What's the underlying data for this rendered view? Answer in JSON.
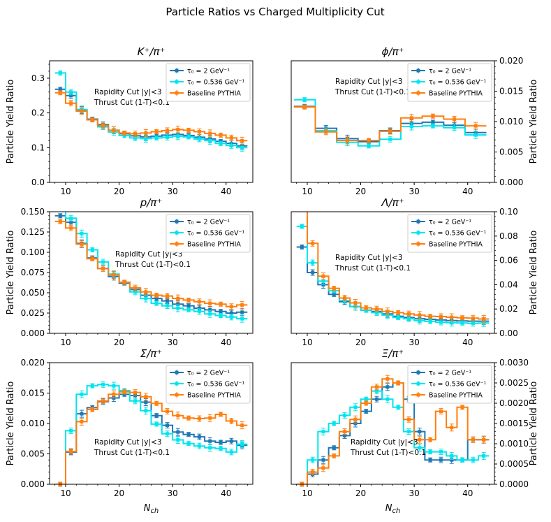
{
  "figure": {
    "title": "Particle Ratios vs Charged Multiplicity Cut",
    "xlabel": "N_ch",
    "ylabel": "Particle Yield Ratio"
  },
  "colors": {
    "tau2": "#1f77b4",
    "tau0536": "#00e5ee",
    "pythia": "#ff7f0e"
  },
  "chart_data": [
    {
      "type": "line",
      "title": "K⁺/π⁺",
      "ylabel": "Particle Yield Ratio",
      "ylim": [
        0,
        0.35
      ],
      "yticks": [
        0.0,
        0.1,
        0.2,
        0.3
      ],
      "ytick_labels": [
        "0.0",
        "0.1",
        "0.2",
        "0.3"
      ],
      "xlim": [
        7,
        45
      ],
      "xticks": [
        10,
        20,
        30,
        40
      ],
      "axis_side": "left",
      "annotation": [
        "Rapidity Cut |y|<3",
        "Thrust Cut (1-T)<0.1"
      ],
      "legend": [
        "τ₀ = 2 GeV⁻¹",
        "τ₀ = 0.536 GeV⁻¹",
        "Baseline PYTHIA"
      ],
      "x": [
        9,
        11,
        13,
        15,
        17,
        19,
        21,
        23,
        25,
        27,
        29,
        31,
        33,
        35,
        37,
        39,
        41,
        43
      ],
      "series": [
        {
          "name": "τ₀ = 2 GeV⁻¹",
          "values": [
            0.268,
            0.25,
            0.208,
            0.182,
            0.166,
            0.15,
            0.14,
            0.134,
            0.131,
            0.133,
            0.136,
            0.138,
            0.135,
            0.13,
            0.125,
            0.118,
            0.112,
            0.105
          ]
        },
        {
          "name": "τ₀ = 0.536 GeV⁻¹",
          "values": [
            0.315,
            0.26,
            0.21,
            0.18,
            0.16,
            0.145,
            0.135,
            0.128,
            0.126,
            0.128,
            0.13,
            0.133,
            0.131,
            0.125,
            0.12,
            0.112,
            0.106,
            0.1
          ]
        },
        {
          "name": "Baseline PYTHIA",
          "values": [
            0.258,
            0.228,
            0.205,
            0.18,
            0.163,
            0.15,
            0.142,
            0.14,
            0.142,
            0.146,
            0.149,
            0.152,
            0.15,
            0.146,
            0.141,
            0.136,
            0.128,
            0.12
          ]
        }
      ]
    },
    {
      "type": "line",
      "title": "ϕ/π⁺",
      "ylabel": "Particle Yield Ratio",
      "ylim": [
        0,
        0.02
      ],
      "yticks": [
        0.0,
        0.005,
        0.01,
        0.015,
        0.02
      ],
      "ytick_labels": [
        "0.000",
        "0.005",
        "0.010",
        "0.015",
        "0.020"
      ],
      "xlim": [
        7,
        45
      ],
      "xticks": [
        10,
        20,
        30,
        40
      ],
      "axis_side": "right",
      "annotation": [
        "Rapidity Cut |y|<3",
        "Thrust Cut (1-T)<0.1"
      ],
      "legend": [
        "τ₀ = 2 GeV⁻¹",
        "τ₀ = 0.536 GeV⁻¹",
        "Baseline PYTHIA"
      ],
      "x": [
        9.5,
        13.5,
        17.5,
        21.5,
        25.5,
        29.5,
        33.5,
        37.5,
        41.5
      ],
      "series": [
        {
          "name": "τ₀ = 2 GeV⁻¹",
          "values": [
            0.0125,
            0.0089,
            0.0072,
            0.0067,
            0.0085,
            0.0097,
            0.0099,
            0.0094,
            0.0082
          ]
        },
        {
          "name": "τ₀ = 0.536 GeV⁻¹",
          "values": [
            0.0136,
            0.0085,
            0.0066,
            0.006,
            0.0071,
            0.0092,
            0.0093,
            0.009,
            0.0078
          ]
        },
        {
          "name": "Baseline PYTHIA",
          "values": [
            0.0124,
            0.0083,
            0.0069,
            0.0069,
            0.0084,
            0.0106,
            0.0109,
            0.0104,
            0.0093
          ]
        }
      ]
    },
    {
      "type": "line",
      "title": "p/π⁺",
      "ylabel": "Particle Yield Ratio",
      "ylim": [
        0,
        0.15
      ],
      "yticks": [
        0.0,
        0.025,
        0.05,
        0.075,
        0.1,
        0.125,
        0.15
      ],
      "ytick_labels": [
        "0.000",
        "0.025",
        "0.050",
        "0.075",
        "0.100",
        "0.125",
        "0.150"
      ],
      "xlim": [
        7,
        45
      ],
      "xticks": [
        10,
        20,
        30,
        40
      ],
      "axis_side": "left",
      "annotation": [
        "Rapidity Cut |y|<3",
        "Thrust Cut (1-T)<0.1"
      ],
      "legend": [
        "τ₀ = 2 GeV⁻¹",
        "τ₀ = 0.536 GeV⁻¹",
        "Baseline PYTHIA"
      ],
      "x": [
        9,
        11,
        13,
        15,
        17,
        19,
        21,
        23,
        25,
        27,
        29,
        31,
        33,
        35,
        37,
        39,
        41,
        43
      ],
      "series": [
        {
          "name": "τ₀ = 2 GeV⁻¹",
          "values": [
            0.145,
            0.137,
            0.111,
            0.093,
            0.08,
            0.07,
            0.062,
            0.054,
            0.047,
            0.043,
            0.04,
            0.036,
            0.034,
            0.031,
            0.029,
            0.027,
            0.025,
            0.026
          ]
        },
        {
          "name": "τ₀ = 0.536 GeV⁻¹",
          "values": [
            0.152,
            0.142,
            0.123,
            0.103,
            0.088,
            0.073,
            0.063,
            0.051,
            0.043,
            0.037,
            0.034,
            0.031,
            0.029,
            0.027,
            0.024,
            0.022,
            0.02,
            0.018
          ]
        },
        {
          "name": "Baseline PYTHIA",
          "values": [
            0.138,
            0.13,
            0.11,
            0.092,
            0.08,
            0.072,
            0.063,
            0.056,
            0.051,
            0.047,
            0.046,
            0.043,
            0.041,
            0.039,
            0.037,
            0.036,
            0.033,
            0.035
          ]
        }
      ]
    },
    {
      "type": "line",
      "title": "Λ/π⁺",
      "ylabel": "Particle Yield Ratio",
      "ylim": [
        0,
        0.1
      ],
      "yticks": [
        0.0,
        0.02,
        0.04,
        0.06,
        0.08,
        0.1
      ],
      "ytick_labels": [
        "0.00",
        "0.02",
        "0.04",
        "0.06",
        "0.08",
        "0.10"
      ],
      "xlim": [
        7,
        45
      ],
      "xticks": [
        10,
        20,
        30,
        40
      ],
      "axis_side": "right",
      "annotation": [
        "Rapidity Cut |y|<3",
        "Thrust Cut (1-T)<0.1"
      ],
      "legend": [
        "τ₀ = 2 GeV⁻¹",
        "τ₀ = 0.536 GeV⁻¹",
        "Baseline PYTHIA"
      ],
      "x": [
        9,
        11,
        13,
        15,
        17,
        19,
        21,
        23,
        25,
        27,
        29,
        31,
        33,
        35,
        37,
        39,
        41,
        43
      ],
      "series": [
        {
          "name": "τ₀ = 2 GeV⁻¹",
          "values": [
            0.071,
            0.05,
            0.04,
            0.032,
            0.026,
            0.022,
            0.019,
            0.018,
            0.016,
            0.014,
            0.013,
            0.012,
            0.0115,
            0.011,
            0.0105,
            0.0102,
            0.01,
            0.01
          ]
        },
        {
          "name": "τ₀ = 0.536 GeV⁻¹",
          "values": [
            0.088,
            0.058,
            0.043,
            0.035,
            0.027,
            0.022,
            0.019,
            0.017,
            0.015,
            0.013,
            0.012,
            0.0105,
            0.0098,
            0.0092,
            0.0088,
            0.0085,
            0.0082,
            0.0085
          ]
        },
        {
          "name": "Baseline PYTHIA",
          "values": [
            0.11,
            0.074,
            0.047,
            0.037,
            0.029,
            0.025,
            0.021,
            0.02,
            0.018,
            0.017,
            0.016,
            0.015,
            0.014,
            0.0138,
            0.0132,
            0.0128,
            0.0125,
            0.0118
          ]
        }
      ]
    },
    {
      "type": "line",
      "title": "Σ/π⁺",
      "ylabel": "Particle Yield Ratio",
      "ylim": [
        0,
        0.02
      ],
      "yticks": [
        0.0,
        0.005,
        0.01,
        0.015,
        0.02
      ],
      "ytick_labels": [
        "0.000",
        "0.005",
        "0.010",
        "0.015",
        "0.020"
      ],
      "xlim": [
        7,
        45
      ],
      "xticks": [
        10,
        20,
        30,
        40
      ],
      "axis_side": "left",
      "annotation": [
        "Rapidity Cut |y|<3",
        "Thrust Cut (1-T)<0.1"
      ],
      "legend": [
        "τ₀ = 2 GeV⁻¹",
        "τ₀ = 0.536 GeV⁻¹",
        "Baseline PYTHIA"
      ],
      "x": [
        9,
        11,
        13,
        15,
        17,
        19,
        21,
        23,
        25,
        27,
        29,
        31,
        33,
        35,
        37,
        39,
        41,
        43
      ],
      "series": [
        {
          "name": "τ₀ = 2 GeV⁻¹",
          "values": [
            0.0,
            0.0053,
            0.0116,
            0.0126,
            0.0136,
            0.0142,
            0.0148,
            0.0146,
            0.0135,
            0.0113,
            0.0097,
            0.0086,
            0.0082,
            0.0078,
            0.0071,
            0.0069,
            0.0071,
            0.0064
          ]
        },
        {
          "name": "τ₀ = 0.536 GeV⁻¹",
          "values": [
            0.0,
            0.0088,
            0.0148,
            0.0162,
            0.0164,
            0.0162,
            0.0154,
            0.0137,
            0.0121,
            0.0099,
            0.0083,
            0.0073,
            0.0067,
            0.0063,
            0.006,
            0.0059,
            0.0053,
            0.0066
          ]
        },
        {
          "name": "Baseline PYTHIA",
          "values": [
            0.0,
            0.0054,
            0.0103,
            0.0123,
            0.0137,
            0.0148,
            0.0152,
            0.0151,
            0.0144,
            0.0133,
            0.012,
            0.0113,
            0.0109,
            0.0108,
            0.0109,
            0.0115,
            0.0104,
            0.0097
          ]
        }
      ]
    },
    {
      "type": "line",
      "title": "Ξ/π⁺",
      "ylabel": "Particle Yield Ratio",
      "ylim": [
        0,
        0.003
      ],
      "yticks": [
        0.0,
        0.0005,
        0.001,
        0.0015,
        0.002,
        0.0025,
        0.003
      ],
      "ytick_labels": [
        "0.0000",
        "0.0005",
        "0.0010",
        "0.0015",
        "0.0020",
        "0.0025",
        "0.0030"
      ],
      "xlim": [
        7,
        45
      ],
      "xticks": [
        10,
        20,
        30,
        40
      ],
      "axis_side": "right",
      "annotation": [
        "Rapidity Cut |y|<3",
        "Thrust Cut (1-T)<0.1"
      ],
      "legend": [
        "τ₀ = 2 GeV⁻¹",
        "τ₀ = 0.536 GeV⁻¹",
        "Baseline PYTHIA"
      ],
      "x": [
        9,
        11,
        13,
        15,
        17,
        19,
        21,
        23,
        25,
        27,
        29,
        31,
        33,
        35,
        37,
        39,
        41,
        43
      ],
      "series": [
        {
          "name": "τ₀ = 2 GeV⁻¹",
          "values": [
            0.0,
            0.00025,
            0.0006,
            0.0009,
            0.0012,
            0.0015,
            0.0018,
            0.0021,
            0.0024,
            0.0025,
            0.0021,
            0.0013,
            0.0006,
            0.0006,
            0.0006,
            0.0006,
            0.0011,
            0.0011
          ]
        },
        {
          "name": "τ₀ = 0.536 GeV⁻¹",
          "values": [
            0.0,
            0.0006,
            0.0013,
            0.0015,
            0.0017,
            0.0019,
            0.0021,
            0.0023,
            0.0021,
            0.0019,
            0.0013,
            0.0009,
            0.0008,
            0.0008,
            0.0007,
            0.0006,
            0.0006,
            0.0007
          ]
        },
        {
          "name": "Baseline PYTHIA",
          "values": [
            0.0,
            0.0003,
            0.0004,
            0.0007,
            0.0013,
            0.0016,
            0.002,
            0.0024,
            0.0026,
            0.0025,
            0.0016,
            0.0011,
            0.0011,
            0.0018,
            0.0014,
            0.0019,
            0.0011,
            0.0011
          ]
        }
      ]
    }
  ]
}
